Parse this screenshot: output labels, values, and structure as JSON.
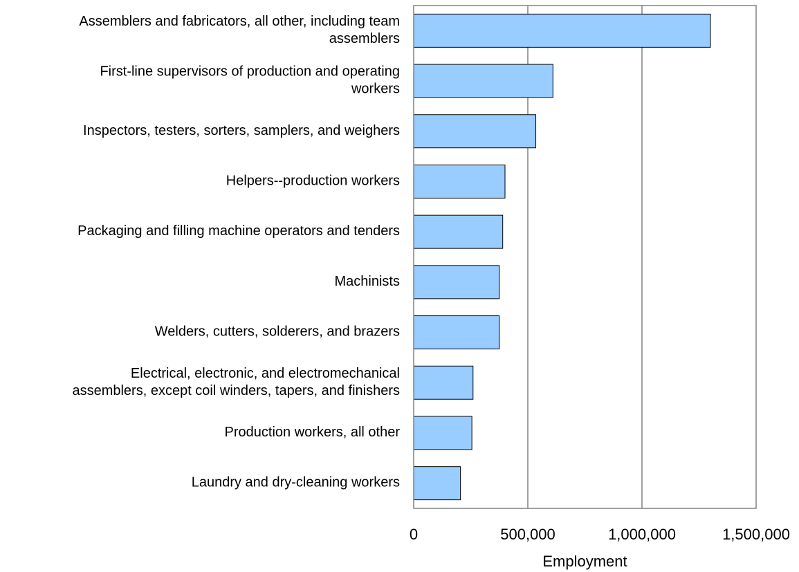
{
  "chart_data": {
    "type": "bar",
    "orientation": "horizontal",
    "categories": [
      [
        "Assemblers and fabricators, all other, including team",
        "assemblers"
      ],
      [
        "First-line supervisors of production and operating",
        "workers"
      ],
      [
        "Inspectors, testers, sorters, samplers, and weighers"
      ],
      [
        "Helpers--production workers"
      ],
      [
        "Packaging and filling machine operators and tenders"
      ],
      [
        "Machinists"
      ],
      [
        "Welders, cutters, solderers, and brazers"
      ],
      [
        "Electrical, electronic, and electromechanical",
        "assemblers, except coil winders, tapers, and finishers"
      ],
      [
        "Production workers, all other"
      ],
      [
        "Laundry and dry-cleaning workers"
      ]
    ],
    "values": [
      1300000,
      610000,
      535000,
      400000,
      390000,
      375000,
      375000,
      260000,
      255000,
      205000
    ],
    "xlabel": "Employment",
    "xlim": [
      0,
      1500000
    ],
    "xticks": [
      "0",
      "500,000",
      "1,000,000",
      "1,500,000"
    ],
    "grid": "vertical",
    "legend": "none",
    "colors": {
      "bar_fill": "#99ccff",
      "bar_stroke": "#000000",
      "grid": "#808080",
      "frame": "#808080"
    }
  }
}
